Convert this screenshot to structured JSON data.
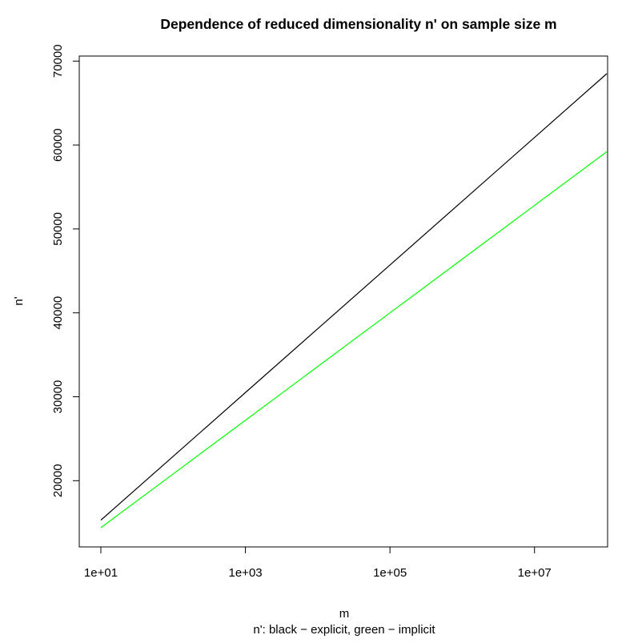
{
  "chart_data": {
    "type": "line",
    "title": "Dependence of reduced dimensionality n' on sample size m",
    "xlabel": "m",
    "ylabel": "n'",
    "subtitle": "n': black − explicit, green − implicit",
    "x_scale": "log10",
    "x_ticks": [
      10,
      1000,
      100000,
      10000000
    ],
    "x_tick_labels": [
      "1e+01",
      "1e+03",
      "1e+05",
      "1e+07"
    ],
    "y_ticks": [
      20000,
      30000,
      40000,
      50000,
      60000,
      70000
    ],
    "y_tick_labels": [
      "20000",
      "30000",
      "40000",
      "50000",
      "60000",
      "70000"
    ],
    "xlim": [
      10,
      100000000
    ],
    "ylim": [
      14400,
      68500
    ],
    "grid": false,
    "series": [
      {
        "color": "#000000",
        "x": [
          10,
          100,
          1000,
          10000,
          100000,
          1000000,
          10000000,
          100000000
        ],
        "values": [
          15300,
          22900,
          30500,
          38100,
          45700,
          53300,
          60900,
          68500
        ]
      },
      {
        "color": "#00ff00",
        "x": [
          10,
          100,
          1000,
          10000,
          100000,
          1000000,
          10000000,
          100000000
        ],
        "values": [
          14400,
          20800,
          27200,
          33600,
          40000,
          46400,
          52800,
          59200
        ]
      }
    ]
  }
}
